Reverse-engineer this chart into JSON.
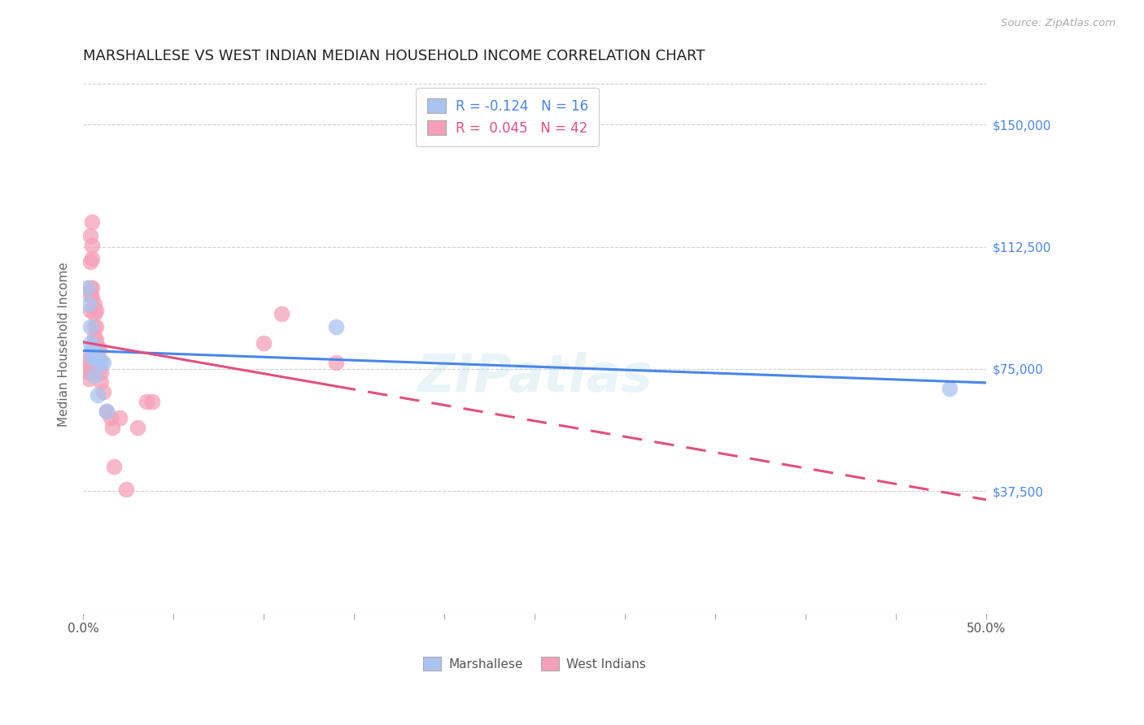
{
  "title": "MARSHALLESE VS WEST INDIAN MEDIAN HOUSEHOLD INCOME CORRELATION CHART",
  "source": "Source: ZipAtlas.com",
  "ylabel": "Median Household Income",
  "yticks": [
    0,
    37500,
    75000,
    112500,
    150000
  ],
  "ytick_labels": [
    "",
    "$37,500",
    "$75,000",
    "$112,500",
    "$150,000"
  ],
  "xlim": [
    0.0,
    0.5
  ],
  "ylim": [
    0,
    165000
  ],
  "blue_color": "#aac4f0",
  "pink_color": "#f5a0b8",
  "blue_line_color": "#4a86e8",
  "pink_line_color": "#e05080",
  "background_color": "#ffffff",
  "grid_color": "#d0d0d0",
  "r_marsh": "-0.124",
  "n_marsh": "16",
  "r_wi": "0.045",
  "n_wi": "42",
  "legend_text_color_blue": "#4a86e8",
  "legend_text_color_pink": "#e05080",
  "marshallese_x": [
    0.002,
    0.003,
    0.004,
    0.004,
    0.005,
    0.005,
    0.006,
    0.006,
    0.007,
    0.008,
    0.008,
    0.01,
    0.011,
    0.013,
    0.14,
    0.48
  ],
  "marshallese_y": [
    100000,
    95000,
    88000,
    83000,
    82000,
    79000,
    78000,
    73000,
    80000,
    78000,
    67000,
    77000,
    77000,
    62000,
    88000,
    69000
  ],
  "west_indian_x": [
    0.002,
    0.002,
    0.003,
    0.003,
    0.003,
    0.004,
    0.004,
    0.004,
    0.004,
    0.004,
    0.005,
    0.005,
    0.005,
    0.005,
    0.005,
    0.005,
    0.006,
    0.006,
    0.006,
    0.006,
    0.007,
    0.007,
    0.007,
    0.008,
    0.009,
    0.009,
    0.009,
    0.01,
    0.01,
    0.011,
    0.013,
    0.015,
    0.016,
    0.017,
    0.02,
    0.024,
    0.03,
    0.035,
    0.038,
    0.1,
    0.11,
    0.14
  ],
  "west_indian_y": [
    79000,
    77000,
    75000,
    74000,
    72000,
    116000,
    108000,
    100000,
    98000,
    93000,
    120000,
    113000,
    109000,
    100000,
    97000,
    79000,
    95000,
    92000,
    88000,
    85000,
    93000,
    88000,
    84000,
    82000,
    81000,
    78000,
    75000,
    74000,
    71000,
    68000,
    62000,
    60000,
    57000,
    45000,
    60000,
    38000,
    57000,
    65000,
    65000,
    83000,
    92000,
    77000
  ],
  "watermark": "ZIPatlas",
  "title_fontsize": 13,
  "axis_label_fontsize": 11,
  "tick_fontsize": 11,
  "scatter_size": 200
}
